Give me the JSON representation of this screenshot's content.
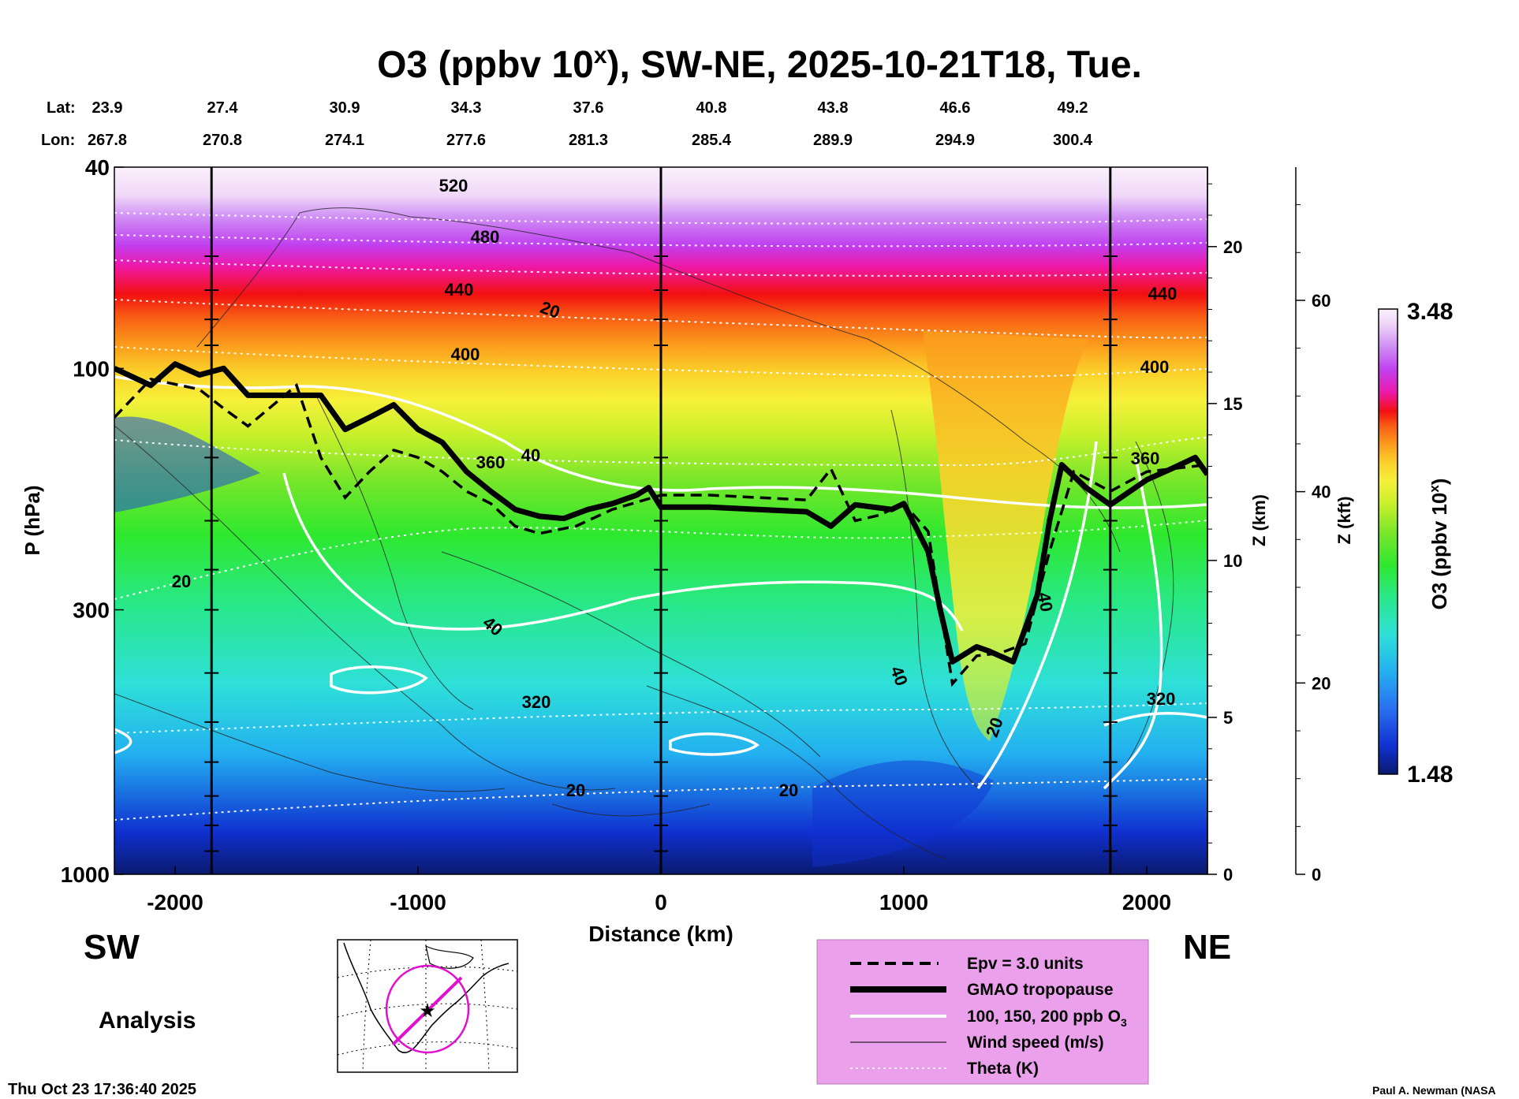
{
  "chart_data": {
    "type": "heatmap",
    "title_main": "O3 (ppbv 10",
    "title_sup": "x",
    "title_rest": "), SW-NE, 2025-10-21T18, Tue.",
    "lat_label": "Lat:",
    "lon_label": "Lon:",
    "lat_values": [
      "23.9",
      "27.4",
      "30.9",
      "34.3",
      "37.6",
      "40.8",
      "43.8",
      "46.6",
      "49.2"
    ],
    "lon_values": [
      "267.8",
      "270.8",
      "274.1",
      "277.6",
      "281.3",
      "285.4",
      "289.9",
      "294.9",
      "300.4"
    ],
    "xlabel": "Distance (km)",
    "ylabel": "P (hPa)",
    "x_ticks": [
      "-2000",
      "-1000",
      "0",
      "1000",
      "2000"
    ],
    "x_tick_values": [
      -2000,
      -1000,
      0,
      1000,
      2000
    ],
    "xlim": [
      -2250,
      2250
    ],
    "y_ticks": [
      "40",
      "100",
      "300",
      "1000"
    ],
    "y_tick_values": [
      40,
      100,
      300,
      1000
    ],
    "ylim": [
      1000,
      40
    ],
    "y_scale": "log",
    "z_label": "Z (km)",
    "z_ticks": [
      "0",
      "5",
      "10",
      "15",
      "20"
    ],
    "z_tick_values": [
      0,
      5,
      10,
      15,
      20
    ],
    "kft_label": "Z (kft)",
    "kft_ticks": [
      "0",
      "20",
      "40",
      "60"
    ],
    "kft_tick_values": [
      0,
      20,
      40,
      60
    ],
    "colorbar_label_main": "O3 (ppbv 10",
    "colorbar_label_sup": "x",
    "colorbar_label_rest": ")",
    "colorbar_max": "3.48",
    "colorbar_min": "1.48",
    "colorbar_range": [
      1.48,
      3.48
    ],
    "colorbar_colors": [
      "#0a1a6e",
      "#1030d0",
      "#2a6ff0",
      "#23b0f0",
      "#2ee0d8",
      "#28e88a",
      "#2ee82e",
      "#7be62a",
      "#c6f02a",
      "#f6f03a",
      "#fbd12a",
      "#fb9a1c",
      "#f85a14",
      "#f21010",
      "#ee18a8",
      "#c040f0",
      "#d090f4",
      "#f0d8f8",
      "#fbf0fb"
    ],
    "theta_labels": [
      "520",
      "480",
      "440",
      "400",
      "360",
      "320",
      "440",
      "400",
      "360",
      "320"
    ],
    "wind_labels": [
      "20",
      "40",
      "20",
      "40",
      "20",
      "40",
      "40",
      "20",
      "20"
    ],
    "tropopause_hpa": [
      [
        -2250,
        100
      ],
      [
        -2100,
        108
      ],
      [
        -2000,
        98
      ],
      [
        -1900,
        103
      ],
      [
        -1800,
        100
      ],
      [
        -1700,
        113
      ],
      [
        -1600,
        113
      ],
      [
        -1400,
        113
      ],
      [
        -1300,
        132
      ],
      [
        -1200,
        125
      ],
      [
        -1100,
        118
      ],
      [
        -1000,
        132
      ],
      [
        -900,
        140
      ],
      [
        -800,
        160
      ],
      [
        -700,
        175
      ],
      [
        -600,
        190
      ],
      [
        -500,
        196
      ],
      [
        -400,
        198
      ],
      [
        -300,
        190
      ],
      [
        -200,
        185
      ],
      [
        -100,
        178
      ],
      [
        -50,
        172
      ],
      [
        0,
        188
      ],
      [
        200,
        188
      ],
      [
        400,
        190
      ],
      [
        600,
        192
      ],
      [
        700,
        205
      ],
      [
        800,
        186
      ],
      [
        950,
        190
      ],
      [
        1000,
        185
      ],
      [
        1100,
        230
      ],
      [
        1150,
        300
      ],
      [
        1200,
        380
      ],
      [
        1300,
        355
      ],
      [
        1350,
        362
      ],
      [
        1450,
        380
      ],
      [
        1550,
        280
      ],
      [
        1600,
        200
      ],
      [
        1650,
        155
      ],
      [
        1750,
        172
      ],
      [
        1850,
        186
      ],
      [
        2000,
        166
      ],
      [
        2100,
        158
      ],
      [
        2200,
        150
      ],
      [
        2250,
        162
      ]
    ],
    "epv_hpa": [
      [
        -2250,
        125
      ],
      [
        -2100,
        105
      ],
      [
        -1900,
        110
      ],
      [
        -1800,
        120
      ],
      [
        -1700,
        130
      ],
      [
        -1500,
        108
      ],
      [
        -1400,
        150
      ],
      [
        -1300,
        180
      ],
      [
        -1200,
        160
      ],
      [
        -1100,
        145
      ],
      [
        -1000,
        150
      ],
      [
        -900,
        160
      ],
      [
        -800,
        175
      ],
      [
        -700,
        185
      ],
      [
        -600,
        205
      ],
      [
        -500,
        212
      ],
      [
        -350,
        205
      ],
      [
        -200,
        190
      ],
      [
        0,
        178
      ],
      [
        200,
        178
      ],
      [
        400,
        180
      ],
      [
        600,
        182
      ],
      [
        700,
        158
      ],
      [
        800,
        200
      ],
      [
        900,
        195
      ],
      [
        1000,
        185
      ],
      [
        1100,
        210
      ],
      [
        1200,
        420
      ],
      [
        1300,
        370
      ],
      [
        1400,
        365
      ],
      [
        1500,
        350
      ],
      [
        1600,
        230
      ],
      [
        1700,
        160
      ],
      [
        1850,
        175
      ],
      [
        2000,
        160
      ],
      [
        2250,
        155
      ]
    ],
    "legend": {
      "epv": "Epv = 3.0 units",
      "tropopause": "GMAO tropopause",
      "o3": "100, 150, 200 ppb O",
      "o3_sub": "3",
      "wind": "Wind speed (m/s)",
      "theta": "Theta (K)"
    },
    "legend_position": "bottom-center",
    "annotations": {
      "sw": "SW",
      "ne": "NE",
      "analysis": "Analysis",
      "timestamp": "Thu Oct 23 17:36:40 2025",
      "credit": "Paul A. Newman (NASA"
    }
  }
}
